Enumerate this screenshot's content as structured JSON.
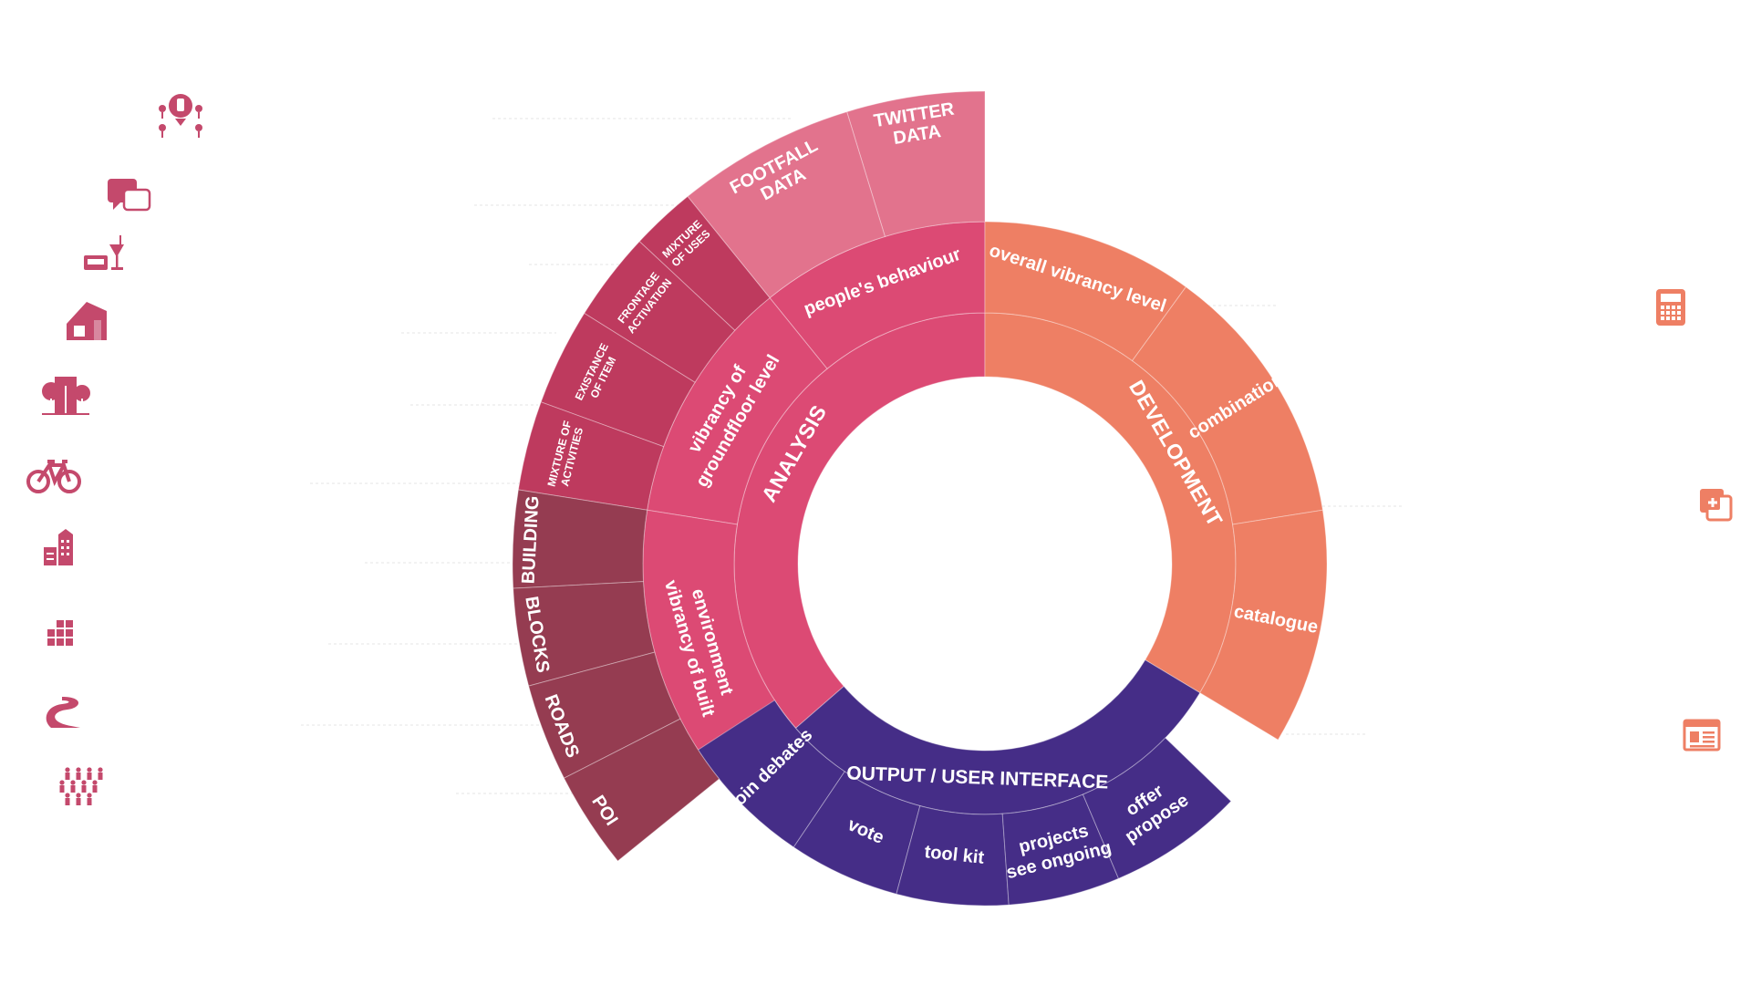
{
  "colors": {
    "analysis": "#DC4A74",
    "analysis_data": "#E2738D",
    "analysis_ground": "#BE3A5E",
    "analysis_built": "#953C51",
    "development": "#EE7F64",
    "output": "#452D87",
    "icon_left": "#C4496C",
    "icon_right": "#EE7F64"
  },
  "hub": {
    "analysis": "ANALYSIS",
    "development": "DEVELOPMENT",
    "output": "OUTPUT / USER INTERFACE"
  },
  "groups": {
    "peoples_behaviour": "people's behaviour",
    "groundfloor": [
      "vibrancy of",
      "groundfloor level"
    ],
    "built_environment": [
      "vibrancy of built",
      "environment"
    ],
    "overall_vibrancy": "overall vibrancy level",
    "combination": "combination",
    "catalogue": "catalogue",
    "join_debates": "join debates",
    "vote": "vote",
    "tool_kit": "tool kit",
    "see_ongoing": [
      "see ongoing",
      "projects"
    ],
    "propose_offer": [
      "propose",
      "offer"
    ]
  },
  "leaves": {
    "twitter": [
      "TWITTER",
      "DATA"
    ],
    "footfall": [
      "FOOTFALL",
      "DATA"
    ],
    "mixture_uses": [
      "MIXTURE",
      "OF USES"
    ],
    "frontage": [
      "FRONTAGE",
      "ACTIVATION"
    ],
    "existance": [
      "EXISTANCE",
      "OF ITEM"
    ],
    "mixture_activities": [
      "MIXTURE OF",
      "ACTIVITIES"
    ],
    "building": "BUILDING",
    "blocks": "BLOCKS",
    "roads": "ROADS",
    "poi": "POI"
  },
  "icons_left": [
    "location-pins-icon",
    "speech-bubbles-icon",
    "food-drink-icon",
    "shop-front-icon",
    "trees-icon",
    "bicycle-icon",
    "buildings-icon",
    "city-blocks-icon",
    "road-icon",
    "people-crowd-icon"
  ],
  "icons_right": [
    "calculator-icon",
    "add-document-icon",
    "catalogue-page-icon"
  ]
}
